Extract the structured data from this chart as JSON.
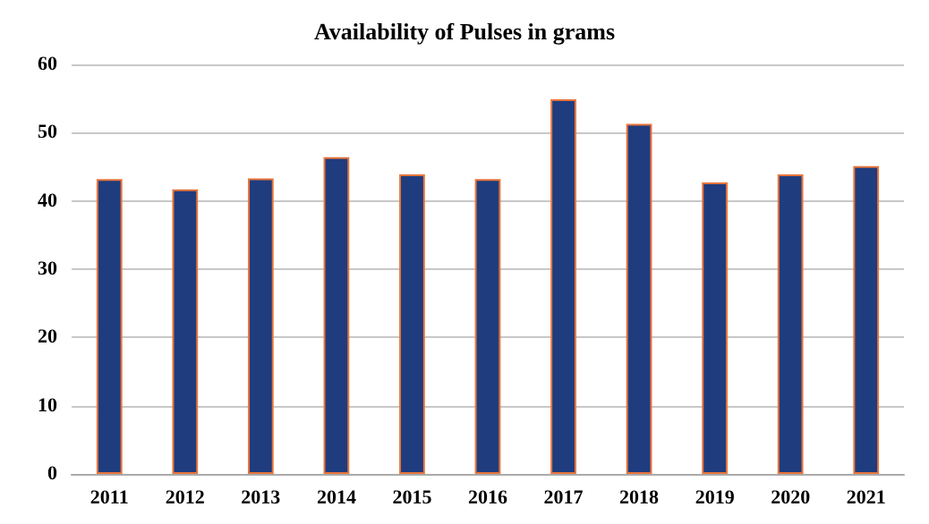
{
  "chart_data": {
    "type": "bar",
    "title": "Availability of Pulses in grams",
    "categories": [
      "2011",
      "2012",
      "2013",
      "2014",
      "2015",
      "2016",
      "2017",
      "2018",
      "2019",
      "2020",
      "2021"
    ],
    "values": [
      43.2,
      41.7,
      43.3,
      46.4,
      43.9,
      43.2,
      54.9,
      51.3,
      42.7,
      43.9,
      45.1
    ],
    "color": "#1f3c7e",
    "ylim": [
      0,
      60
    ],
    "yticks": [
      0,
      10,
      20,
      30,
      40,
      50,
      60
    ],
    "grid": "y"
  }
}
